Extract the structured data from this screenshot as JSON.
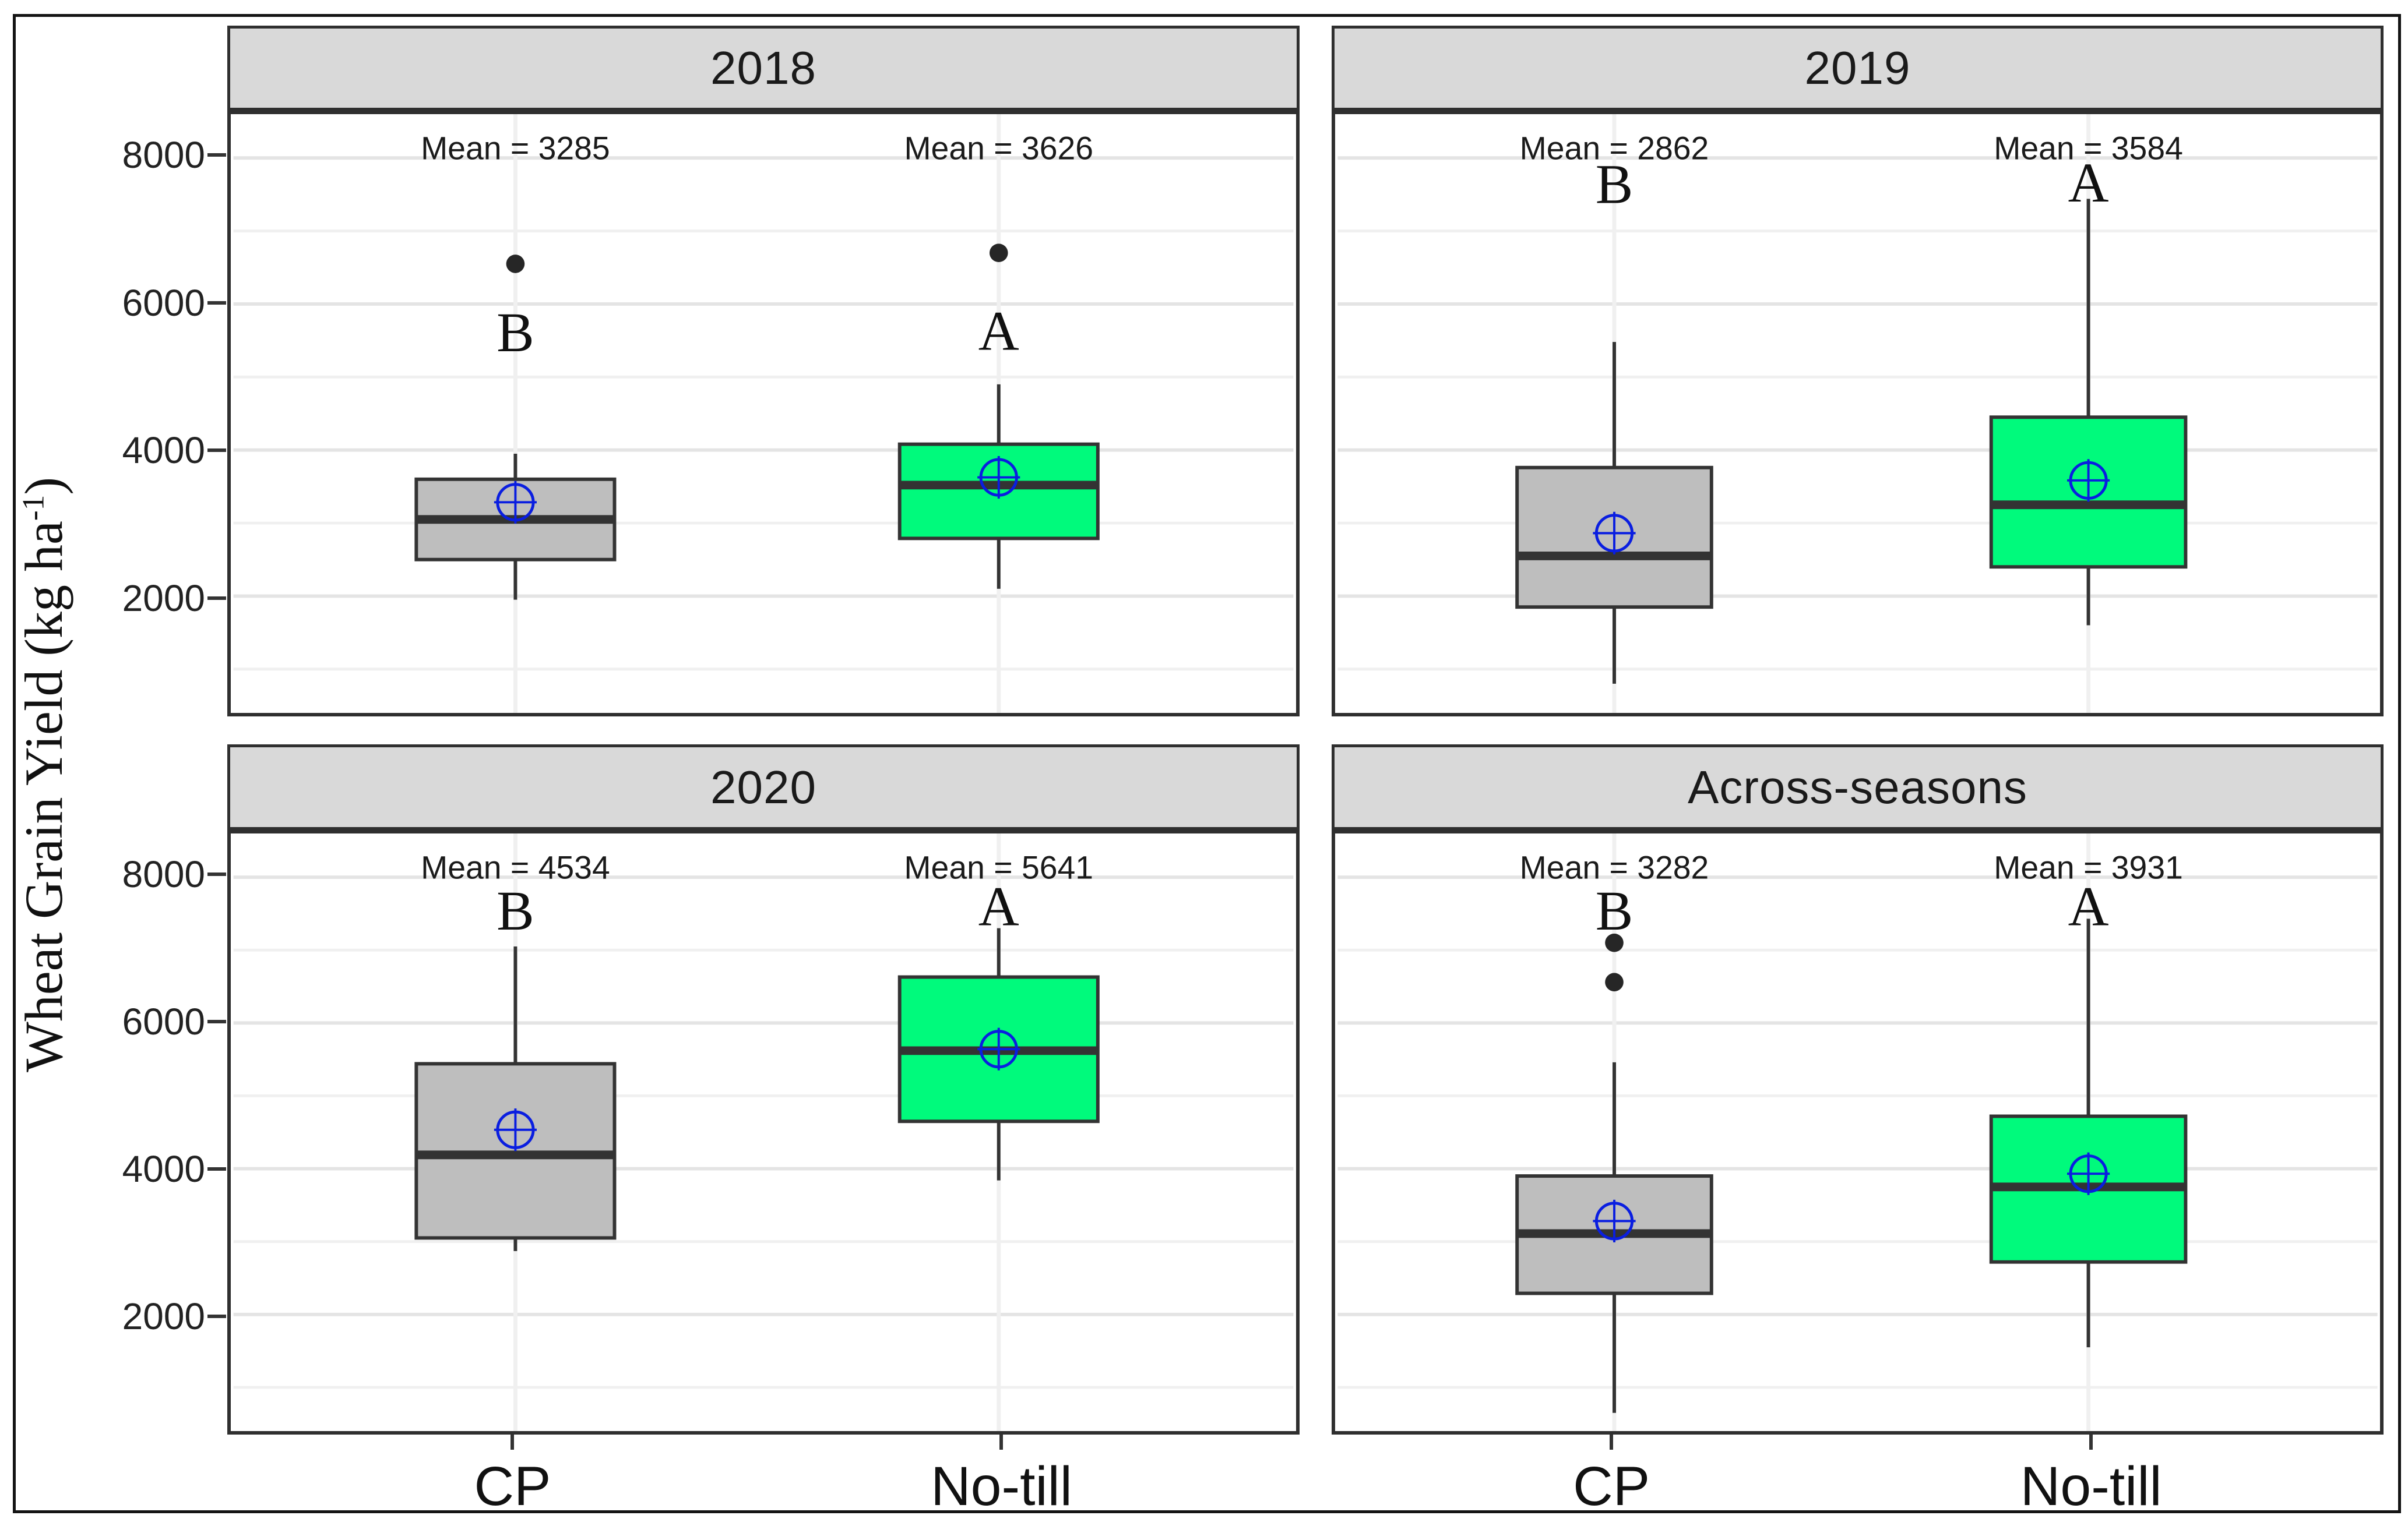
{
  "figure": {
    "y_axis": {
      "title_prefix": "Wheat Grain Yield (kg ha",
      "title_sup": "-1",
      "title_suffix": ")",
      "tick_labels": [
        "2000",
        "4000",
        "6000",
        "8000"
      ]
    },
    "x_axis": {
      "categories": [
        "CP",
        "No-till"
      ]
    },
    "colors": {
      "cp_fill": "#bebebe",
      "notill_fill": "#00fa7c",
      "box_border": "#333333",
      "median_line": "#333333",
      "whisker": "#333333",
      "mean_marker": "#0a1ee0",
      "outlier": "#262626",
      "strip_bg": "#d9d9d9",
      "strip_border": "#2f2f2f",
      "panel_border": "#2f2f2f",
      "gridline_major": "#e4e4e4",
      "gridline_minor": "#f0f0f0",
      "tick": "#333333",
      "text": "#1a1a1a",
      "figure_border": "#141414",
      "background": "#ffffff"
    },
    "chart_data": {
      "type": "boxplot",
      "title": "",
      "ylabel": "Wheat Grain Yield (kg ha-1)",
      "ylim": [
        400,
        8600
      ],
      "y_ticks": [
        2000,
        4000,
        6000,
        8000
      ],
      "gridline_step": 1000,
      "grid": true,
      "legend_position": "none",
      "categories": [
        "CP",
        "No-till"
      ],
      "mean_label_y": 8140,
      "facets": [
        {
          "title": "2018",
          "boxes": [
            {
              "category": "CP",
              "mean": 3285,
              "mean_label": "Mean = 3285",
              "letter": "B",
              "letter_y": 5620,
              "whisker_low": 1950,
              "q1": 2500,
              "median": 3050,
              "q3": 3600,
              "whisker_high": 3950,
              "outliers": [
                6550
              ]
            },
            {
              "category": "No-till",
              "mean": 3626,
              "mean_label": "Mean = 3626",
              "letter": "A",
              "letter_y": 5640,
              "whisker_low": 2100,
              "q1": 2790,
              "median": 3520,
              "q3": 4080,
              "whisker_high": 4900,
              "outliers": [
                6700
              ]
            }
          ]
        },
        {
          "title": "2019",
          "boxes": [
            {
              "category": "CP",
              "mean": 2862,
              "mean_label": "Mean = 2862",
              "letter": "B",
              "letter_y": 7650,
              "whisker_low": 800,
              "q1": 1850,
              "median": 2550,
              "q3": 3760,
              "whisker_high": 5480,
              "outliers": []
            },
            {
              "category": "No-till",
              "mean": 3584,
              "mean_label": "Mean = 3584",
              "letter": "A",
              "letter_y": 7670,
              "whisker_low": 1600,
              "q1": 2400,
              "median": 3250,
              "q3": 4450,
              "whisker_high": 7440,
              "outliers": []
            }
          ]
        },
        {
          "title": "2020",
          "boxes": [
            {
              "category": "CP",
              "mean": 4534,
              "mean_label": "Mean = 4534",
              "letter": "B",
              "letter_y": 7550,
              "whisker_low": 2870,
              "q1": 3050,
              "median": 4190,
              "q3": 5440,
              "whisker_high": 7050,
              "outliers": []
            },
            {
              "category": "No-till",
              "mean": 5641,
              "mean_label": "Mean = 5641",
              "letter": "A",
              "letter_y": 7610,
              "whisker_low": 3840,
              "q1": 4650,
              "median": 5620,
              "q3": 6630,
              "whisker_high": 7300,
              "outliers": []
            }
          ]
        },
        {
          "title": "Across-seasons",
          "boxes": [
            {
              "category": "CP",
              "mean": 3282,
              "mean_label": "Mean = 3282",
              "letter": "B",
              "letter_y": 7550,
              "whisker_low": 650,
              "q1": 2290,
              "median": 3110,
              "q3": 3900,
              "whisker_high": 5460,
              "outliers": [
                7100,
                6560
              ]
            },
            {
              "category": "No-till",
              "mean": 3931,
              "mean_label": "Mean = 3931",
              "letter": "A",
              "letter_y": 7610,
              "whisker_low": 1550,
              "q1": 2720,
              "median": 3750,
              "q3": 4720,
              "whisker_high": 7430,
              "outliers": []
            }
          ]
        }
      ]
    }
  }
}
